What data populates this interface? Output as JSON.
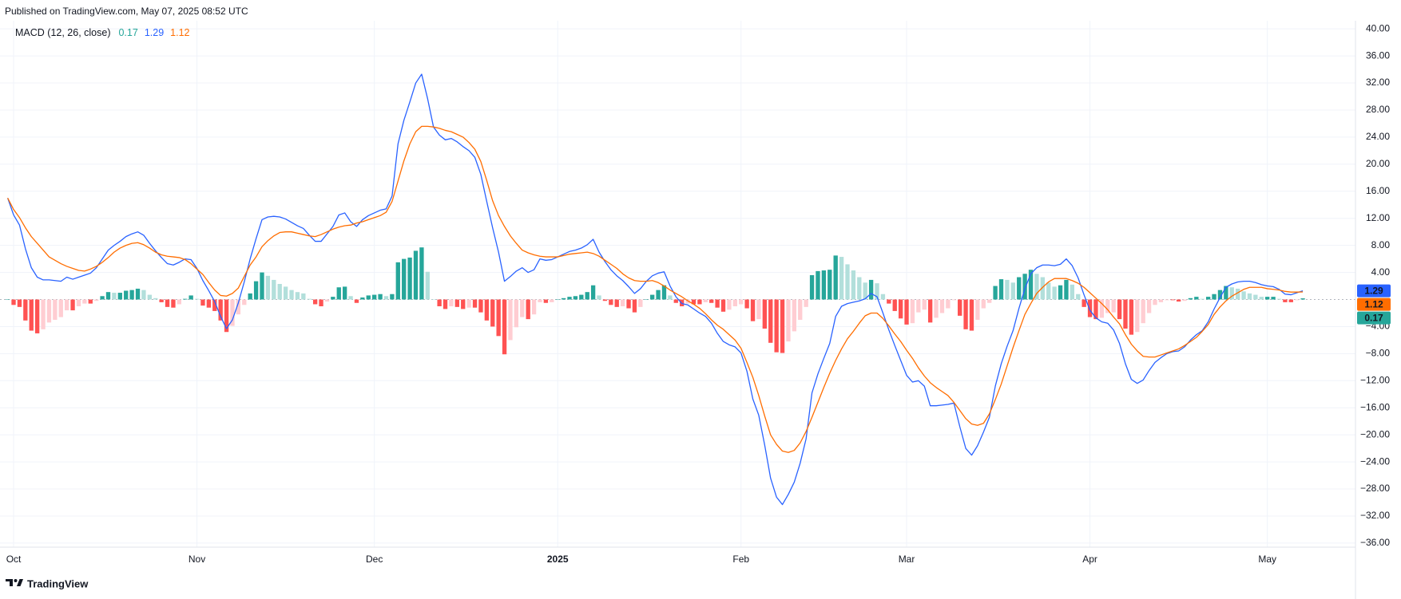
{
  "header": {
    "published": "Published on TradingView.com, May 07, 2025 08:52 UTC"
  },
  "footer": {
    "brand": "TradingView"
  },
  "chart_data": {
    "type": "macd",
    "indicator_label": "MACD (12, 26, close)",
    "xlim": [
      -1.3,
      227.9
    ],
    "xticks": [
      {
        "value": 1,
        "label": "Oct"
      },
      {
        "value": 32,
        "label": "Nov"
      },
      {
        "value": 62,
        "label": "Dec"
      },
      {
        "value": 93,
        "label": "2025"
      },
      {
        "value": 124,
        "label": "Feb"
      },
      {
        "value": 152,
        "label": "Mar"
      },
      {
        "value": 183,
        "label": "Apr"
      },
      {
        "value": 213,
        "label": "May"
      }
    ],
    "ylim": [
      -36.6,
      41.2
    ],
    "yticks": [
      {
        "value": 40,
        "label": "40.00"
      },
      {
        "value": 36,
        "label": "36.00"
      },
      {
        "value": 32,
        "label": "32.00"
      },
      {
        "value": 28,
        "label": "28.00"
      },
      {
        "value": 24,
        "label": "24.00"
      },
      {
        "value": 20,
        "label": "20.00"
      },
      {
        "value": 16,
        "label": "16.00"
      },
      {
        "value": 12,
        "label": "12.00"
      },
      {
        "value": 8,
        "label": "8.00"
      },
      {
        "value": 4,
        "label": "4.00"
      },
      {
        "value": -4,
        "label": "−4.00"
      },
      {
        "value": -8,
        "label": "−8.00"
      },
      {
        "value": -12,
        "label": "−12.00"
      },
      {
        "value": -16,
        "label": "−16.00"
      },
      {
        "value": -20,
        "label": "−20.00"
      },
      {
        "value": -24,
        "label": "−24.00"
      },
      {
        "value": -28,
        "label": "−28.00"
      },
      {
        "value": -32,
        "label": "−32.00"
      },
      {
        "value": -36,
        "label": "−36.00"
      }
    ],
    "grid": true,
    "series": [
      {
        "type": "histogram",
        "color": "#26a69a",
        "colors": {
          "grow_above": "#26a69a",
          "fall_above": "#b2dfdb",
          "grow_below": "#ffcdd2",
          "fall_below": "#ff5252"
        },
        "values": [
          0.0,
          -0.8,
          -1.1,
          -3.1,
          -4.6,
          -5.0,
          -4.4,
          -3.4,
          -3.0,
          -2.6,
          -1.6,
          -1.6,
          -1.0,
          -0.6,
          -0.6,
          -0.2,
          0.5,
          1.1,
          1.0,
          1.0,
          1.3,
          1.4,
          1.6,
          1.4,
          0.7,
          0.2,
          -0.4,
          -1.1,
          -1.2,
          -0.7,
          0.1,
          0.6,
          0.1,
          -0.9,
          -1.2,
          -1.7,
          -3.1,
          -4.8,
          -3.9,
          -2.2,
          -0.8,
          0.9,
          2.7,
          4.0,
          3.5,
          2.9,
          2.3,
          1.9,
          1.4,
          1.1,
          0.9,
          0.1,
          -0.7,
          -1.0,
          -0.3,
          0.4,
          1.8,
          1.9,
          0.5,
          -0.5,
          0.3,
          0.6,
          0.7,
          0.8,
          0.5,
          0.8,
          5.5,
          6.0,
          6.2,
          7.2,
          7.7,
          4.1,
          0.0,
          -1.0,
          -1.4,
          -1.0,
          -1.1,
          -1.4,
          -1.2,
          -1.2,
          -1.9,
          -3.1,
          -4.0,
          -5.4,
          -8.1,
          -6.0,
          -4.1,
          -2.6,
          -2.9,
          -2.2,
          -0.4,
          -0.5,
          -0.4,
          0.0,
          0.2,
          0.4,
          0.5,
          0.7,
          1.1,
          2.1,
          0.6,
          -0.2,
          -0.8,
          -1.1,
          -1.0,
          -1.3,
          -1.9,
          -1.1,
          0.0,
          0.7,
          1.4,
          2.1,
          0.6,
          -0.5,
          -1.0,
          -0.6,
          -0.7,
          -0.7,
          -0.4,
          -0.5,
          -1.2,
          -1.8,
          -1.5,
          -1.0,
          -0.7,
          -1.3,
          -3.2,
          -2.9,
          -4.3,
          -6.4,
          -7.8,
          -7.9,
          -6.2,
          -4.7,
          -3.0,
          -1.1,
          3.6,
          4.2,
          4.3,
          4.4,
          6.5,
          6.3,
          5.2,
          4.3,
          3.3,
          2.5,
          2.9,
          2.4,
          0.8,
          -0.6,
          -1.7,
          -2.8,
          -3.7,
          -3.5,
          -1.9,
          -1.5,
          -3.4,
          -2.7,
          -2.0,
          -1.3,
          -0.1,
          -2.4,
          -4.4,
          -4.6,
          -3.0,
          -1.3,
          -0.5,
          2.0,
          3.0,
          2.9,
          2.5,
          3.3,
          3.8,
          4.4,
          3.8,
          3.3,
          2.5,
          1.9,
          2.1,
          2.9,
          2.2,
          0.8,
          -1.1,
          -2.6,
          -2.9,
          -2.7,
          -2.0,
          -1.9,
          -2.9,
          -4.3,
          -5.2,
          -4.8,
          -3.5,
          -2.0,
          -0.8,
          -0.4,
          -0.1,
          -0.1,
          -0.3,
          -0.2,
          0.2,
          0.4,
          0.1,
          0.4,
          0.8,
          1.4,
          2.0,
          1.8,
          1.6,
          1.2,
          0.9,
          0.7,
          0.4,
          0.4,
          0.4,
          0.1,
          -0.4,
          -0.4,
          -0.1,
          0.17
        ]
      },
      {
        "type": "line",
        "color": "#2962ff",
        "values": [
          15.0,
          12.5,
          11.0,
          7.5,
          4.7,
          3.3,
          2.9,
          2.9,
          2.8,
          2.7,
          3.3,
          3.0,
          3.3,
          3.6,
          3.9,
          4.7,
          6.0,
          7.3,
          8.0,
          8.6,
          9.3,
          9.7,
          10.0,
          9.5,
          8.3,
          7.2,
          6.2,
          5.3,
          5.1,
          5.5,
          6.0,
          5.9,
          4.6,
          2.8,
          1.3,
          -0.3,
          -2.5,
          -4.3,
          -3.0,
          -0.5,
          2.6,
          6.0,
          9.0,
          11.8,
          12.2,
          12.3,
          12.2,
          11.9,
          11.4,
          10.9,
          10.5,
          9.5,
          8.6,
          8.6,
          9.7,
          10.8,
          12.5,
          12.8,
          11.5,
          10.8,
          11.8,
          12.4,
          12.8,
          13.2,
          13.4,
          15.3,
          23.0,
          26.5,
          29.2,
          32.0,
          33.3,
          29.7,
          25.5,
          24.3,
          23.6,
          23.8,
          23.3,
          22.6,
          22.0,
          21.0,
          18.5,
          14.5,
          10.6,
          7.0,
          2.7,
          3.4,
          4.2,
          4.7,
          4.0,
          4.4,
          6.0,
          5.8,
          5.9,
          6.3,
          6.7,
          7.1,
          7.3,
          7.6,
          8.1,
          8.9,
          7.0,
          5.6,
          4.4,
          3.5,
          2.8,
          1.9,
          0.9,
          1.6,
          2.7,
          3.5,
          3.9,
          4.1,
          2.0,
          0.4,
          -0.6,
          -0.8,
          -1.4,
          -2.0,
          -2.5,
          -3.5,
          -5.0,
          -6.2,
          -6.7,
          -7.0,
          -7.9,
          -10.6,
          -14.7,
          -17.1,
          -21.5,
          -26.4,
          -29.2,
          -30.3,
          -28.8,
          -27.0,
          -24.2,
          -20.6,
          -13.8,
          -11.0,
          -8.7,
          -6.5,
          -2.5,
          -1.0,
          -0.6,
          -0.4,
          -0.2,
          0.1,
          0.9,
          0.4,
          -2.0,
          -4.5,
          -6.8,
          -9.0,
          -11.2,
          -12.2,
          -12.0,
          -12.8,
          -15.7,
          -15.7,
          -15.6,
          -15.5,
          -15.3,
          -18.8,
          -22.0,
          -23.0,
          -21.6,
          -19.6,
          -17.4,
          -12.8,
          -9.5,
          -6.9,
          -4.6,
          -1.3,
          1.6,
          3.8,
          4.7,
          5.1,
          5.1,
          5.0,
          5.2,
          6.0,
          5.0,
          3.2,
          0.7,
          -1.6,
          -2.7,
          -3.3,
          -3.5,
          -4.5,
          -6.5,
          -9.5,
          -11.8,
          -12.4,
          -11.9,
          -10.5,
          -9.3,
          -8.6,
          -8.0,
          -7.7,
          -7.6,
          -7.0,
          -6.0,
          -5.2,
          -4.6,
          -3.3,
          -1.4,
          0.3,
          1.8,
          2.3,
          2.6,
          2.7,
          2.7,
          2.5,
          2.2,
          2.0,
          1.9,
          1.5,
          0.8,
          0.7,
          1.0,
          1.29
        ]
      },
      {
        "type": "line",
        "color": "#ff6d00",
        "values": [
          15.0,
          13.3,
          12.1,
          10.6,
          9.3,
          8.3,
          7.3,
          6.3,
          5.8,
          5.3,
          4.9,
          4.6,
          4.3,
          4.2,
          4.5,
          4.9,
          5.5,
          6.2,
          7.0,
          7.6,
          8.0,
          8.3,
          8.4,
          8.1,
          7.6,
          7.0,
          6.6,
          6.4,
          6.3,
          6.2,
          5.9,
          5.3,
          4.5,
          3.7,
          2.5,
          1.4,
          0.6,
          0.5,
          0.9,
          1.7,
          3.4,
          5.1,
          6.3,
          7.8,
          8.7,
          9.4,
          9.9,
          10.0,
          10.0,
          9.8,
          9.6,
          9.4,
          9.3,
          9.6,
          10.0,
          10.4,
          10.7,
          10.9,
          11.0,
          11.3,
          11.5,
          11.8,
          12.1,
          12.4,
          12.9,
          14.5,
          17.5,
          20.5,
          23.0,
          24.8,
          25.6,
          25.6,
          25.5,
          25.3,
          25.0,
          24.8,
          24.4,
          24.0,
          23.2,
          22.2,
          20.4,
          17.6,
          14.6,
          12.4,
          10.8,
          9.4,
          8.3,
          7.3,
          6.9,
          6.6,
          6.4,
          6.3,
          6.3,
          6.3,
          6.5,
          6.7,
          6.8,
          6.9,
          7.0,
          6.8,
          6.4,
          5.8,
          5.2,
          4.6,
          3.8,
          3.2,
          2.8,
          2.7,
          2.7,
          2.8,
          2.5,
          2.0,
          1.4,
          0.9,
          0.4,
          -0.2,
          -0.7,
          -1.3,
          -2.1,
          -3.0,
          -3.8,
          -4.4,
          -5.2,
          -6.0,
          -7.2,
          -9.3,
          -11.5,
          -14.2,
          -17.2,
          -20.0,
          -21.4,
          -22.4,
          -22.6,
          -22.3,
          -21.2,
          -19.5,
          -17.4,
          -15.2,
          -13.0,
          -10.9,
          -9.0,
          -7.3,
          -5.8,
          -4.7,
          -3.5,
          -2.4,
          -2.0,
          -2.0,
          -2.8,
          -3.9,
          -5.1,
          -6.2,
          -7.5,
          -8.7,
          -10.1,
          -11.3,
          -12.3,
          -13.0,
          -13.6,
          -14.2,
          -15.2,
          -16.4,
          -17.6,
          -18.4,
          -18.6,
          -18.3,
          -16.9,
          -14.8,
          -12.5,
          -9.8,
          -7.1,
          -4.6,
          -2.2,
          -0.6,
          0.9,
          1.8,
          2.6,
          3.1,
          3.1,
          3.1,
          2.8,
          2.4,
          1.8,
          1.0,
          0.2,
          -0.6,
          -1.5,
          -2.6,
          -3.6,
          -5.2,
          -6.6,
          -7.6,
          -8.4,
          -8.5,
          -8.5,
          -8.2,
          -7.9,
          -7.6,
          -7.3,
          -6.8,
          -6.2,
          -5.6,
          -4.7,
          -3.7,
          -2.2,
          -1.1,
          -0.2,
          0.5,
          1.0,
          1.5,
          1.8,
          1.8,
          1.8,
          1.6,
          1.5,
          1.4,
          1.2,
          1.1,
          1.1,
          1.12
        ]
      }
    ]
  }
}
